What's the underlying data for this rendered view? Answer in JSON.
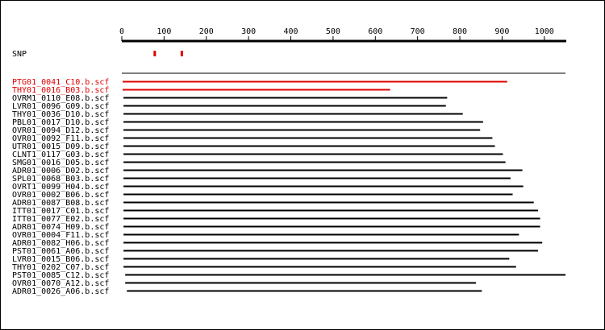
{
  "chart_data": {
    "type": "sequence-alignment",
    "axis": {
      "min": 0,
      "max": 1050,
      "ticks": [
        0,
        100,
        200,
        300,
        400,
        500,
        600,
        700,
        800,
        900,
        1000
      ],
      "tick_labels": [
        "0",
        "100",
        "200",
        "300",
        "400",
        "500",
        "600",
        "700",
        "800",
        "900",
        "1000"
      ]
    },
    "snp": {
      "label": "SNP",
      "positions": [
        78,
        142
      ],
      "color": "#e00000"
    },
    "highlight_color": "#e00000",
    "default_color": "#000000",
    "reads": [
      {
        "name": "PTG01_0041_C10.b.scf",
        "start": 2,
        "end": 912,
        "highlight": true
      },
      {
        "name": "THY01_0016_B03.b.scf",
        "start": 2,
        "end": 635,
        "highlight": true
      },
      {
        "name": "OVRM1_0110_E08.b.scf",
        "start": 4,
        "end": 770,
        "highlight": false
      },
      {
        "name": "LVR01_0096_G09.b.scf",
        "start": 4,
        "end": 767,
        "highlight": false
      },
      {
        "name": "THY01_0036_D10.b.scf",
        "start": 4,
        "end": 807,
        "highlight": false
      },
      {
        "name": "PBL01_0017_D10.b.scf",
        "start": 4,
        "end": 855,
        "highlight": false
      },
      {
        "name": "OVR01_0094_D12.b.scf",
        "start": 4,
        "end": 848,
        "highlight": false
      },
      {
        "name": "OVR01_0092_F11.b.scf",
        "start": 4,
        "end": 877,
        "highlight": false
      },
      {
        "name": "UTR01_0015_D09.b.scf",
        "start": 4,
        "end": 883,
        "highlight": false
      },
      {
        "name": "CLNT1_0117_G03.b.scf",
        "start": 4,
        "end": 902,
        "highlight": false
      },
      {
        "name": "SMG01_0016_D05.b.scf",
        "start": 4,
        "end": 908,
        "highlight": false
      },
      {
        "name": "ADR01_0006_D02.b.scf",
        "start": 4,
        "end": 948,
        "highlight": false
      },
      {
        "name": "SPL01_0068_B03.b.scf",
        "start": 4,
        "end": 920,
        "highlight": false
      },
      {
        "name": "OVRT1_0099_H04.b.scf",
        "start": 4,
        "end": 950,
        "highlight": false
      },
      {
        "name": "OVR01_0002_B06.b.scf",
        "start": 4,
        "end": 925,
        "highlight": false
      },
      {
        "name": "ADR01_0087_B08.b.scf",
        "start": 4,
        "end": 975,
        "highlight": false
      },
      {
        "name": "ITT01_0017_C01.b.scf",
        "start": 4,
        "end": 985,
        "highlight": false
      },
      {
        "name": "ITT01_0077_E02.b.scf",
        "start": 4,
        "end": 990,
        "highlight": false
      },
      {
        "name": "ADR01_0074_H09.b.scf",
        "start": 4,
        "end": 990,
        "highlight": false
      },
      {
        "name": "OVR01_0004_F11.b.scf",
        "start": 4,
        "end": 940,
        "highlight": false
      },
      {
        "name": "ADR01_0082_H06.b.scf",
        "start": 4,
        "end": 995,
        "highlight": false
      },
      {
        "name": "PST01_0061_A06.b.scf",
        "start": 4,
        "end": 985,
        "highlight": false
      },
      {
        "name": "LVR01_0015_B06.b.scf",
        "start": 4,
        "end": 917,
        "highlight": false
      },
      {
        "name": "THY01_0202_C07.b.scf",
        "start": 4,
        "end": 933,
        "highlight": false
      },
      {
        "name": "PST01_0085_C12.b.scf",
        "start": 8,
        "end": 1050,
        "highlight": false
      },
      {
        "name": "OVR01_0070_A12.b.scf",
        "start": 8,
        "end": 838,
        "highlight": false
      },
      {
        "name": "ADR01_0026_A06.b.scf",
        "start": 12,
        "end": 852,
        "highlight": false
      }
    ]
  }
}
